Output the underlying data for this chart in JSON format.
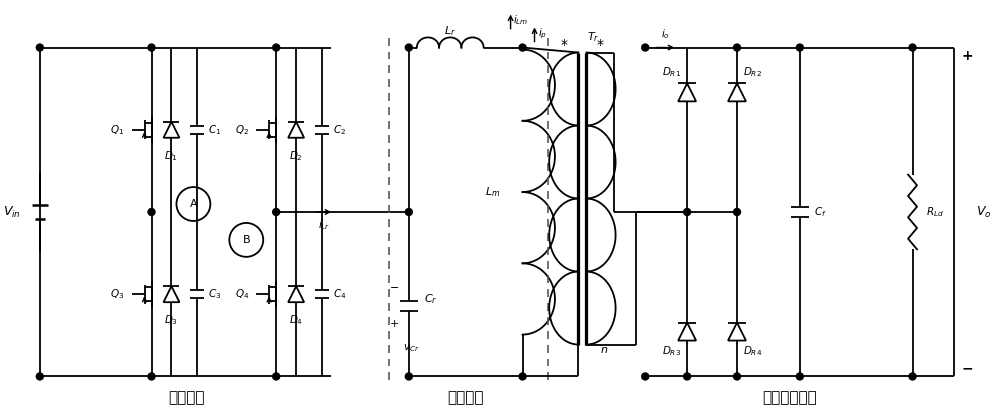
{
  "bg_color": "#ffffff",
  "lw": 1.3,
  "fig_width": 10.0,
  "fig_height": 4.19,
  "dpi": 100,
  "sections": {
    "inverter_label": "逆变电路",
    "resonant_label": "谐振电路",
    "rectifier_label": "整流滤波电路"
  },
  "labels": {
    "Vin": "$V_{in}$",
    "A": "A",
    "B": "B",
    "Q1": "$Q_1$",
    "D1": "$D_1$",
    "C1": "$C_1$",
    "Q2": "$Q_2$",
    "D2": "$D_2$",
    "C2": "$C_2$",
    "Q3": "$Q_3$",
    "D3": "$D_3$",
    "C3": "$C_3$",
    "Q4": "$Q_4$",
    "D4": "$D_4$",
    "C4": "$C_4$",
    "Lr": "$L_r$",
    "Lm": "$L_m$",
    "Cr": "$C_r$",
    "vCr": "$v_{Cr}$",
    "iLr": "$i_{Lr}$",
    "iLm": "$i_{Lm}$",
    "ip": "$i_p$",
    "Tr": "$T_r$",
    "n": "$n$",
    "DR1": "$D_{R1}$",
    "DR2": "$D_{R2}$",
    "DR3": "$D_{R3}$",
    "DR4": "$D_{R4}$",
    "Cf": "$C_f$",
    "RLd": "$R_{Ld}$",
    "Vo": "$V_o$",
    "io": "$i_o$",
    "plus": "+",
    "minus": "−",
    "star": "*"
  }
}
